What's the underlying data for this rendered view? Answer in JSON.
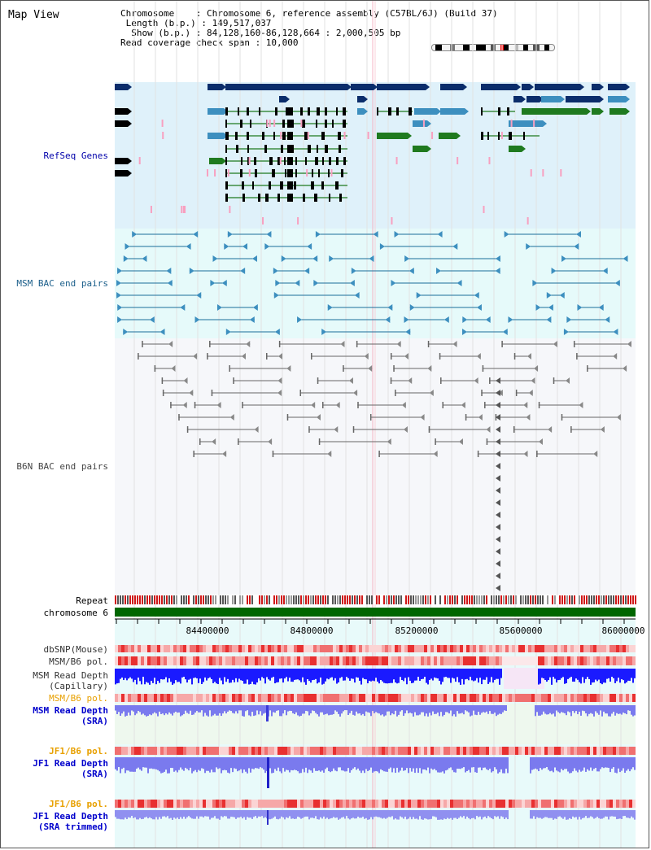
{
  "app": {
    "title": "Map View"
  },
  "header": {
    "info_lines": [
      "Chromosome    : Chromosome 6, reference assembly (C57BL/6J) (Build 37)",
      " Length (b.p.) : 149,517,037",
      "  Show (b.p.) : 84,128,160-86,128,664 : 2,000,505 bp",
      "Read coverage check span : 10,000"
    ]
  },
  "tracks": {
    "refseq": {
      "label": "RefSeq Genes",
      "color": "#0000aa"
    },
    "msm_bac": {
      "label": "MSM BAC end pairs",
      "color": "#1a5e8a"
    },
    "b6n_bac": {
      "label": "B6N BAC end pairs",
      "color": "#444444"
    },
    "repeat": {
      "label": "Repeat"
    },
    "chromosome": {
      "label": "chromosome 6"
    },
    "dbsnp": {
      "label": "dbSNP(Mouse)"
    },
    "msm_b6_pol_1": {
      "label": "MSM/B6 pol."
    },
    "msm_read_depth_cap": {
      "label_1": "MSM Read Depth",
      "label_2": "(Capillary)"
    },
    "msm_b6_pol_2": {
      "label": "MSM/B6 pol.",
      "color": "#e8a000"
    },
    "msm_read_depth_sra": {
      "label_1": "MSM Read Depth",
      "label_2": "(SRA)",
      "color": "#0000cc"
    },
    "jf1_b6_pol_1": {
      "label": "JF1/B6 pol.",
      "color": "#e8a000"
    },
    "jf1_read_depth_sra": {
      "label_1": "JF1 Read Depth",
      "label_2": "(SRA)",
      "color": "#0000cc"
    },
    "jf1_b6_pol_2": {
      "label": "JF1/B6 pol.",
      "color": "#e8a000"
    },
    "jf1_read_depth_trim": {
      "label_1": "JF1 Read Depth",
      "label_2": "(SRA trimmed)",
      "color": "#0000cc"
    }
  },
  "axis": {
    "ticks": [
      "84400000",
      "84800000",
      "85200000",
      "85600000",
      "86000000"
    ]
  },
  "colors": {
    "refseq_bg": "#dff1fa",
    "msm_bg": "#e6fafa",
    "b6n_bg": "#f6f7fa",
    "chromosome_bar": "#006600",
    "gene_navy": "#0b2d6b",
    "gene_blue": "#3d8fbf",
    "gene_green": "#1f7a1f",
    "snp_red": "#e03030",
    "depth_blue": "#1a1aff",
    "depth_light": "#7a7aee"
  }
}
